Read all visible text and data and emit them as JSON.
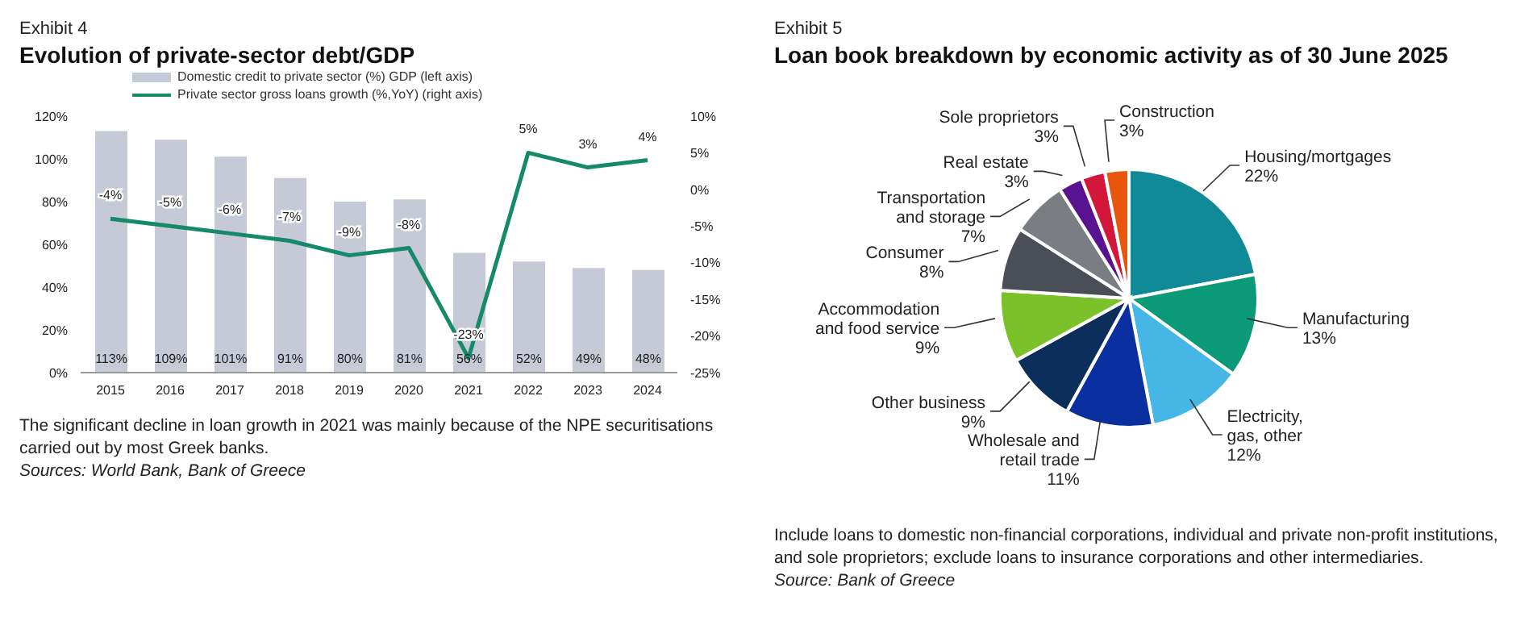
{
  "chart_data": [
    {
      "type": "bar",
      "subtitle": "Exhibit 4",
      "title": "Evolution of private-sector debt/GDP",
      "categories": [
        "2015",
        "2016",
        "2017",
        "2018",
        "2019",
        "2020",
        "2021",
        "2022",
        "2023",
        "2024"
      ],
      "series": [
        {
          "type": "bar",
          "name": "Domestic credit to private sector (%) GDP (left axis)",
          "color": "#c6c9d6",
          "values": [
            113,
            109,
            101,
            91,
            80,
            81,
            56,
            52,
            49,
            48
          ],
          "value_labels": [
            "113%",
            "109%",
            "101%",
            "91%",
            "80%",
            "81%",
            "56%",
            "52%",
            "49%",
            "48%"
          ]
        },
        {
          "type": "line",
          "axis": "y2",
          "name": "Private sector gross loans growth (%,YoY) (right axis)",
          "color": "#158a68",
          "values": [
            -4,
            -5,
            -6,
            -7,
            -9,
            -8,
            -23,
            5,
            3,
            4
          ],
          "value_labels": [
            "-4%",
            "-5%",
            "-6%",
            "-7%",
            "-9%",
            "-8%",
            "-23%",
            "5%",
            "3%",
            "4%"
          ]
        }
      ],
      "ylim": [
        0,
        120
      ],
      "yticks": [
        {
          "value": 0,
          "label": "0%"
        },
        {
          "value": 20,
          "label": "20%"
        },
        {
          "value": 40,
          "label": "40%"
        },
        {
          "value": 60,
          "label": "60%"
        },
        {
          "value": 80,
          "label": "80%"
        },
        {
          "value": 100,
          "label": "100%"
        },
        {
          "value": 120,
          "label": "120%"
        }
      ],
      "y2lim": [
        -25,
        10
      ],
      "y2ticks": [
        {
          "value": -25,
          "label": "-25%"
        },
        {
          "value": -20,
          "label": "-20%"
        },
        {
          "value": -15,
          "label": "-15%"
        },
        {
          "value": -10,
          "label": "-10%"
        },
        {
          "value": -5,
          "label": "-5%"
        },
        {
          "value": 0,
          "label": "0%"
        },
        {
          "value": 5,
          "label": "5%"
        },
        {
          "value": 10,
          "label": "10%"
        }
      ],
      "legend": "top",
      "annotations": [
        "The significant decline in loan growth in 2021 was mainly because of the NPE securitisations carried out by most Greek banks.",
        "Sources: World Bank, Bank of Greece"
      ]
    },
    {
      "type": "pie",
      "subtitle": "Exhibit 5",
      "title": "Loan book breakdown by economic activity as of 30 June 2025",
      "categories": [
        "Housing/mortgages",
        "Manufacturing",
        "Electricity, gas, other",
        "Wholesale and retail trade",
        "Other business",
        "Accommodation and food service",
        "Consumer",
        "Transportation and storage",
        "Real estate",
        "Sole proprietors",
        "Construction"
      ],
      "values": [
        22,
        13,
        12,
        11,
        9,
        9,
        8,
        7,
        3,
        3,
        3
      ],
      "value_labels": [
        "22%",
        "13%",
        "12%",
        "11%",
        "9%",
        "9%",
        "8%",
        "7%",
        "3%",
        "3%",
        "3%"
      ],
      "colors": [
        "#108a96",
        "#0a9a78",
        "#45b6e6",
        "#0a2fa0",
        "#0b2e5a",
        "#7ac12a",
        "#4a4f57",
        "#7a7d82",
        "#5a1390",
        "#d3173a",
        "#e8560e"
      ],
      "annotations": [
        "Include loans to domestic non-financial corporations, individual and private non-profit institutions, and sole proprietors; exclude loans to insurance corporations and other intermediaries.",
        "Source: Bank of Greece"
      ]
    }
  ]
}
